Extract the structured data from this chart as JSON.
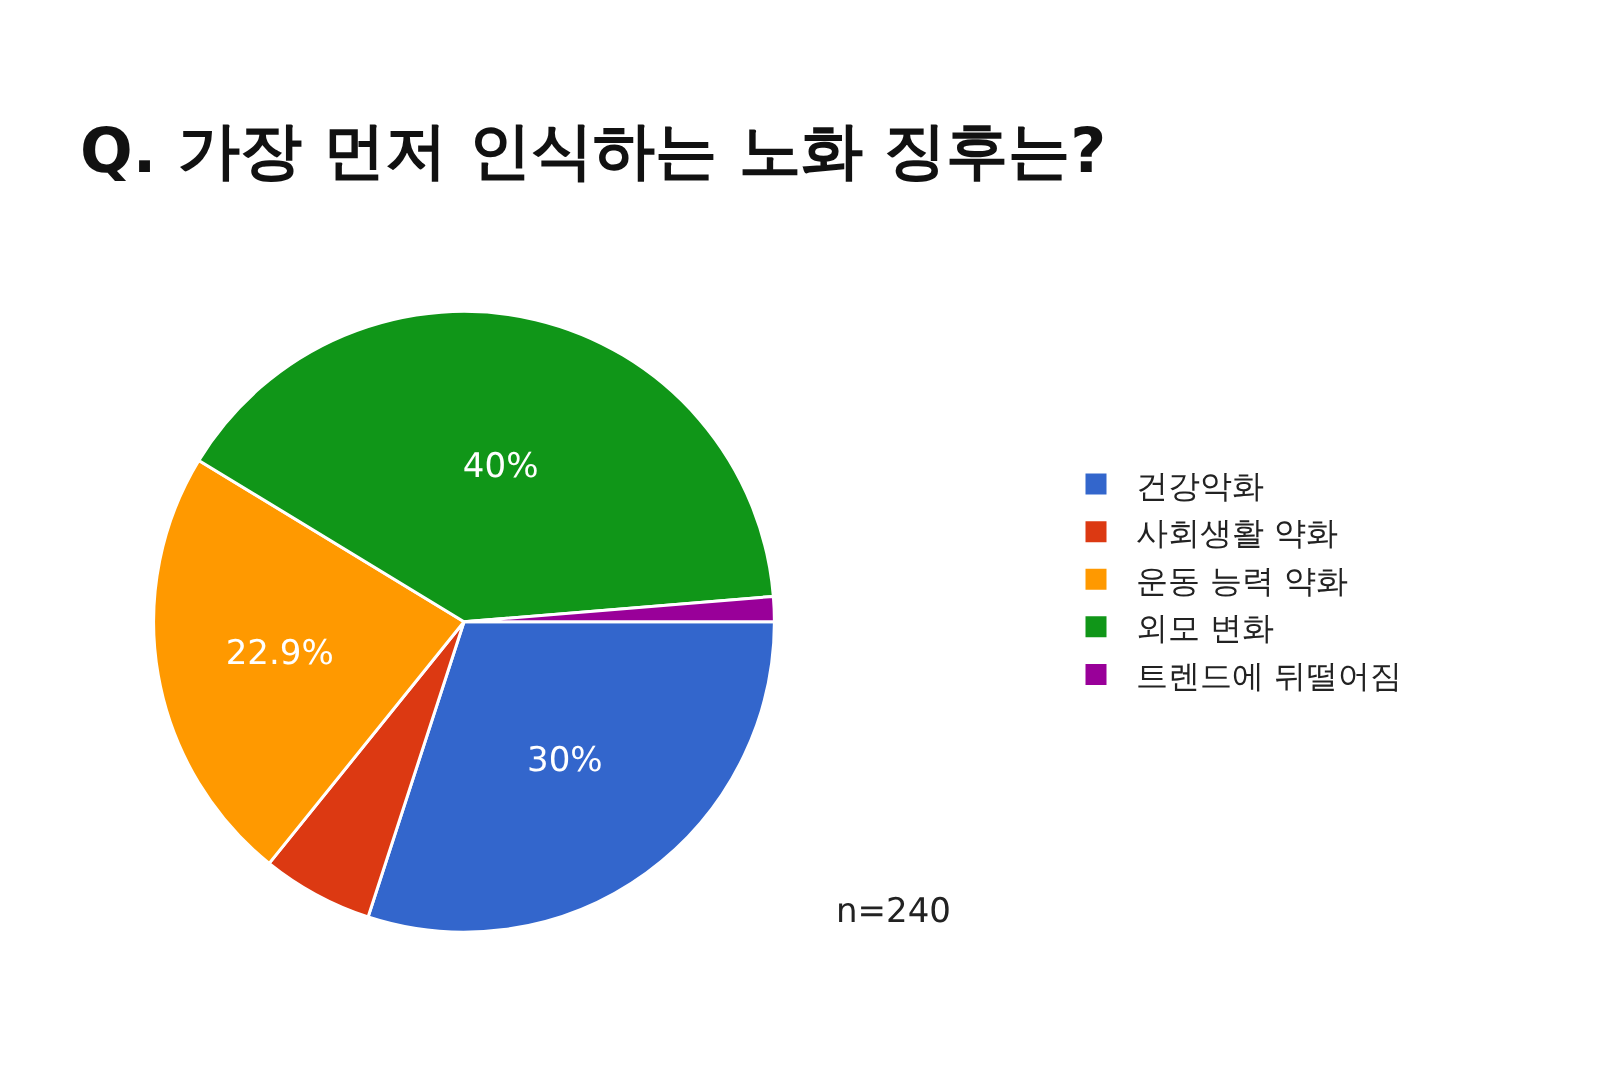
{
  "chart_data": {
    "type": "pie",
    "title": "Q. 가장 먼저 인식하는 노화 징후는?",
    "categories": [
      "건강악화",
      "사회생활 약화",
      "운동 능력 약화",
      "외모 변화",
      "트렌드에 뒤떨어짐"
    ],
    "values": [
      30,
      5.8,
      22.9,
      40,
      1.3
    ],
    "value_labels": [
      "30%",
      null,
      "22.9%",
      "40%",
      null
    ],
    "colors": [
      "#3366cc",
      "#dc3912",
      "#ff9900",
      "#109618",
      "#990099"
    ],
    "legend": "right",
    "annotations": [
      "n=240"
    ]
  }
}
